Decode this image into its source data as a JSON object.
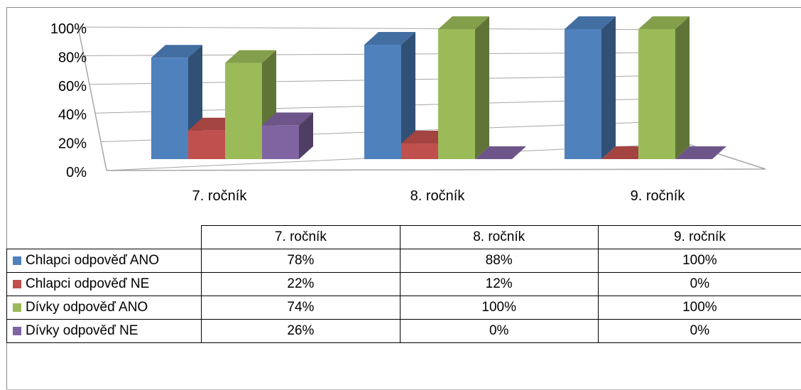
{
  "chart_data": {
    "type": "bar",
    "subtype": "3d-clustered-column",
    "categories": [
      "7. ročník",
      "8. ročník",
      "9. ročník"
    ],
    "series": [
      {
        "name": "Chlapci odpověď ANO",
        "values": [
          78,
          88,
          100
        ],
        "color": "#4f81bd",
        "label_values": [
          "78%",
          "88%",
          "100%"
        ]
      },
      {
        "name": "Chlapci odpověď NE",
        "values": [
          22,
          12,
          0
        ],
        "color": "#c0504d",
        "label_values": [
          "22%",
          "12%",
          "0%"
        ]
      },
      {
        "name": "Dívky odpověď ANO",
        "values": [
          74,
          100,
          100
        ],
        "color": "#9bbb59",
        "label_values": [
          "74%",
          "100%",
          "100%"
        ]
      },
      {
        "name": "Dívky odpověď NE",
        "values": [
          26,
          0,
          0
        ],
        "color": "#8064a2",
        "label_values": [
          "26%",
          "0%",
          "0%"
        ]
      }
    ],
    "y_ticks": [
      "0%",
      "20%",
      "40%",
      "60%",
      "80%",
      "100%"
    ],
    "ylim": [
      0,
      100
    ],
    "grid": true,
    "legend": "data-table-below"
  }
}
